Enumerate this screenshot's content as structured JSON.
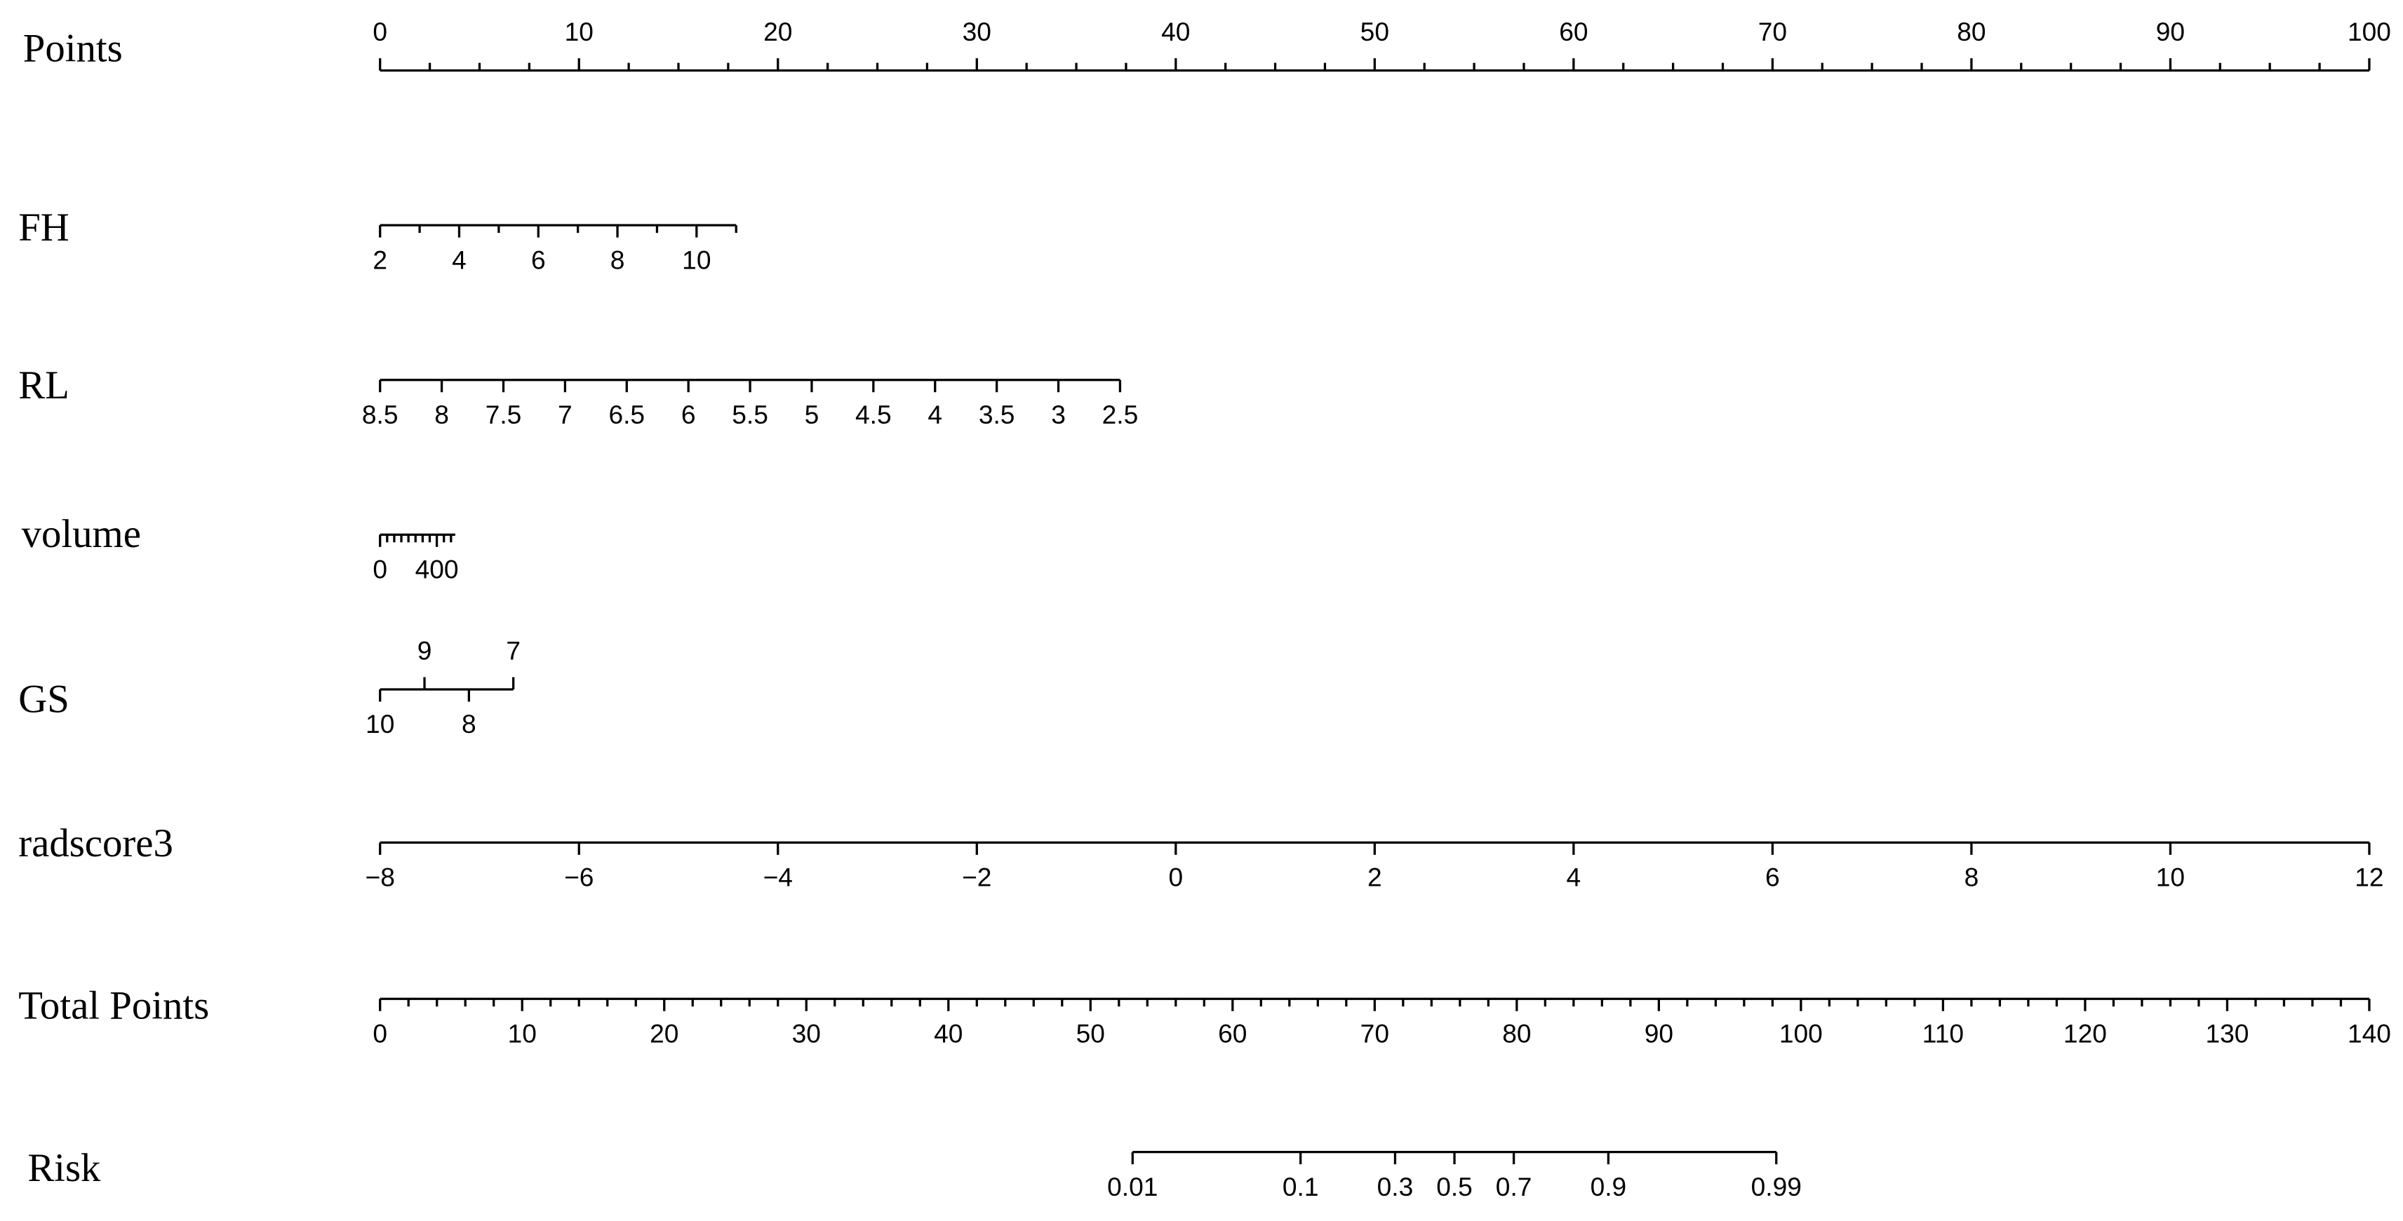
{
  "chart_data": {
    "type": "nomogram",
    "rows": [
      {
        "name": "Points",
        "lim": [
          0,
          100
        ],
        "at": [
          0,
          100
        ],
        "scale": "linear",
        "label_side": "above",
        "ticks": [
          0,
          10,
          20,
          30,
          40,
          50,
          60,
          70,
          80,
          90,
          100
        ],
        "minor_ticks": [
          2.5,
          5,
          7.5,
          12.5,
          15,
          17.5,
          22.5,
          25,
          27.5,
          32.5,
          35,
          37.5,
          42.5,
          45,
          47.5,
          52.5,
          55,
          57.5,
          62.5,
          65,
          67.5,
          72.5,
          75,
          77.5,
          82.5,
          85,
          87.5,
          92.5,
          95,
          97.5
        ]
      },
      {
        "name": "FH",
        "lim": [
          2,
          11
        ],
        "at": [
          0,
          17.9
        ],
        "scale": "linear",
        "label_side": "below",
        "ticks": [
          2,
          4,
          6,
          8,
          10
        ],
        "minor_ticks": [
          3,
          5,
          7,
          9,
          11
        ]
      },
      {
        "name": "RL",
        "lim": [
          8.5,
          2.5
        ],
        "at": [
          0,
          37.2
        ],
        "scale": "linear",
        "label_side": "below",
        "ticks": [
          8.5,
          8,
          7.5,
          7,
          6.5,
          6,
          5.5,
          5,
          4.5,
          4,
          3.5,
          3,
          2.5
        ],
        "minor_ticks": []
      },
      {
        "name": "volume",
        "lim": [
          0,
          530
        ],
        "at": [
          0,
          3.78
        ],
        "scale": "linear",
        "label_side": "below",
        "ticks": [
          0,
          400
        ],
        "minor_ticks": [
          50,
          100,
          150,
          200,
          250,
          300,
          350,
          450,
          500
        ]
      },
      {
        "name": "GS",
        "lim": [
          10,
          7
        ],
        "at": [
          0,
          6.7
        ],
        "scale": "linear",
        "label_side": "alternate",
        "ticks": [
          10,
          9,
          8,
          7
        ],
        "minor_ticks": []
      },
      {
        "name": "radscore3",
        "lim": [
          -8,
          12
        ],
        "at": [
          0,
          100
        ],
        "scale": "linear",
        "label_side": "below",
        "ticks": [
          {
            "value": -8,
            "label": "−8"
          },
          {
            "value": -6,
            "label": "−6"
          },
          {
            "value": -4,
            "label": "−4"
          },
          {
            "value": -2,
            "label": "−2"
          },
          0,
          2,
          4,
          6,
          8,
          10,
          12
        ],
        "minor_ticks": []
      },
      {
        "name": "Total Points",
        "lim": [
          0,
          140
        ],
        "at": [
          0,
          100
        ],
        "scale": "linear",
        "label_side": "below",
        "ticks": [
          0,
          10,
          20,
          30,
          40,
          50,
          60,
          70,
          80,
          90,
          100,
          110,
          120,
          130,
          140
        ],
        "minor_ticks": [
          2,
          4,
          6,
          8,
          12,
          14,
          16,
          18,
          22,
          24,
          26,
          28,
          32,
          34,
          36,
          38,
          42,
          44,
          46,
          48,
          52,
          54,
          56,
          58,
          62,
          64,
          66,
          68,
          72,
          74,
          76,
          78,
          82,
          84,
          86,
          88,
          92,
          94,
          96,
          98,
          102,
          104,
          106,
          108,
          112,
          114,
          116,
          118,
          122,
          124,
          126,
          128,
          132,
          134,
          136,
          138
        ]
      },
      {
        "name": "Risk",
        "lim": [
          0.01,
          0.99
        ],
        "at": [
          37.83,
          70.19
        ],
        "scale": "logit",
        "label_side": "below",
        "ticks": [
          0.01,
          0.1,
          0.3,
          0.5,
          0.7,
          0.9,
          0.99
        ],
        "minor_ticks": []
      }
    ]
  }
}
